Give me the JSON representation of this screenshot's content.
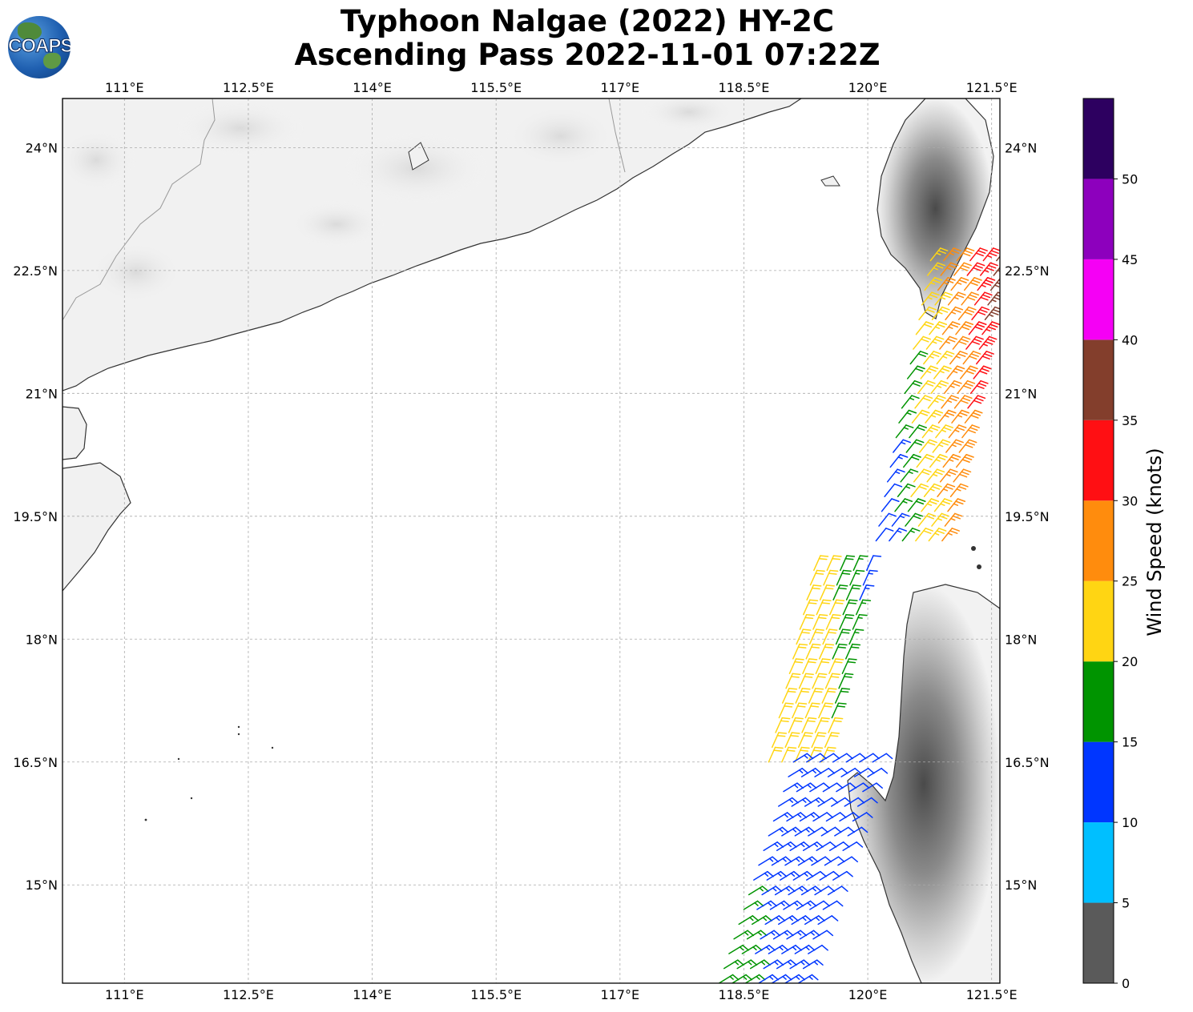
{
  "title": {
    "line1": "Typhoon Nalgae (2022) HY-2C",
    "line2": "Ascending Pass 2022-11-01 07:22Z"
  },
  "logo": {
    "text": "COAPS"
  },
  "chart_data": {
    "type": "wind-barb-map",
    "title": "Typhoon Nalgae (2022) HY-2C Ascending Pass 2022-11-01 07:22Z",
    "lon_range": [
      110.25,
      121.6
    ],
    "lat_range": [
      13.8,
      24.6
    ],
    "x_ticks": [
      "111°E",
      "112.5°E",
      "114°E",
      "115.5°E",
      "117°E",
      "118.5°E",
      "120°E",
      "121.5°E"
    ],
    "x_tick_values": [
      111,
      112.5,
      114,
      115.5,
      117,
      118.5,
      120,
      121.5
    ],
    "y_ticks": [
      "24°N",
      "22.5°N",
      "21°N",
      "19.5°N",
      "18°N",
      "16.5°N",
      "15°N"
    ],
    "y_tick_values": [
      24,
      22.5,
      21,
      19.5,
      18,
      16.5,
      15
    ],
    "grid": true,
    "colorbar": {
      "label": "Wind Speed (knots)",
      "ticks": [
        "0",
        "5",
        "10",
        "15",
        "20",
        "25",
        "30",
        "35",
        "40",
        "45",
        "50"
      ],
      "bins": [
        {
          "range": [
            0,
            5
          ],
          "color": "#5a5a5a"
        },
        {
          "range": [
            5,
            10
          ],
          "color": "#00bfff"
        },
        {
          "range": [
            10,
            15
          ],
          "color": "#0036ff"
        },
        {
          "range": [
            15,
            20
          ],
          "color": "#009400"
        },
        {
          "range": [
            20,
            25
          ],
          "color": "#ffd513"
        },
        {
          "range": [
            25,
            30
          ],
          "color": "#ff8c0d"
        },
        {
          "range": [
            30,
            35
          ],
          "color": "#ff0f13"
        },
        {
          "range": [
            35,
            40
          ],
          "color": "#833e2c"
        },
        {
          "range": [
            40,
            45
          ],
          "color": "#f500f5"
        },
        {
          "range": [
            45,
            50
          ],
          "color": "#8d00bd"
        },
        {
          "range": [
            50,
            55
          ],
          "color": "#2d0060"
        }
      ]
    },
    "barb_swaths": [
      {
        "segment": "north",
        "lat_range": [
          19.2,
          22.7
        ],
        "lon_range": [
          120.1,
          121.6
        ],
        "speed_by_lon": [
          [
            120.2,
            12
          ],
          [
            120.6,
            22
          ],
          [
            121.0,
            27
          ],
          [
            121.3,
            32
          ],
          [
            121.5,
            37
          ]
        ]
      },
      {
        "segment": "middle",
        "lat_range": [
          16.5,
          19.0
        ],
        "lon_range": [
          118.8,
          120.1
        ],
        "speed_by_lon": [
          [
            118.9,
            22
          ],
          [
            119.4,
            22
          ],
          [
            119.8,
            17
          ],
          [
            120.0,
            12
          ]
        ]
      },
      {
        "segment": "south",
        "lat_range": [
          13.8,
          16.5
        ],
        "lon_range": [
          118.2,
          120.2
        ],
        "speed_by_lon": [
          [
            118.3,
            17
          ],
          [
            118.9,
            13
          ],
          [
            119.6,
            12
          ]
        ]
      }
    ]
  }
}
